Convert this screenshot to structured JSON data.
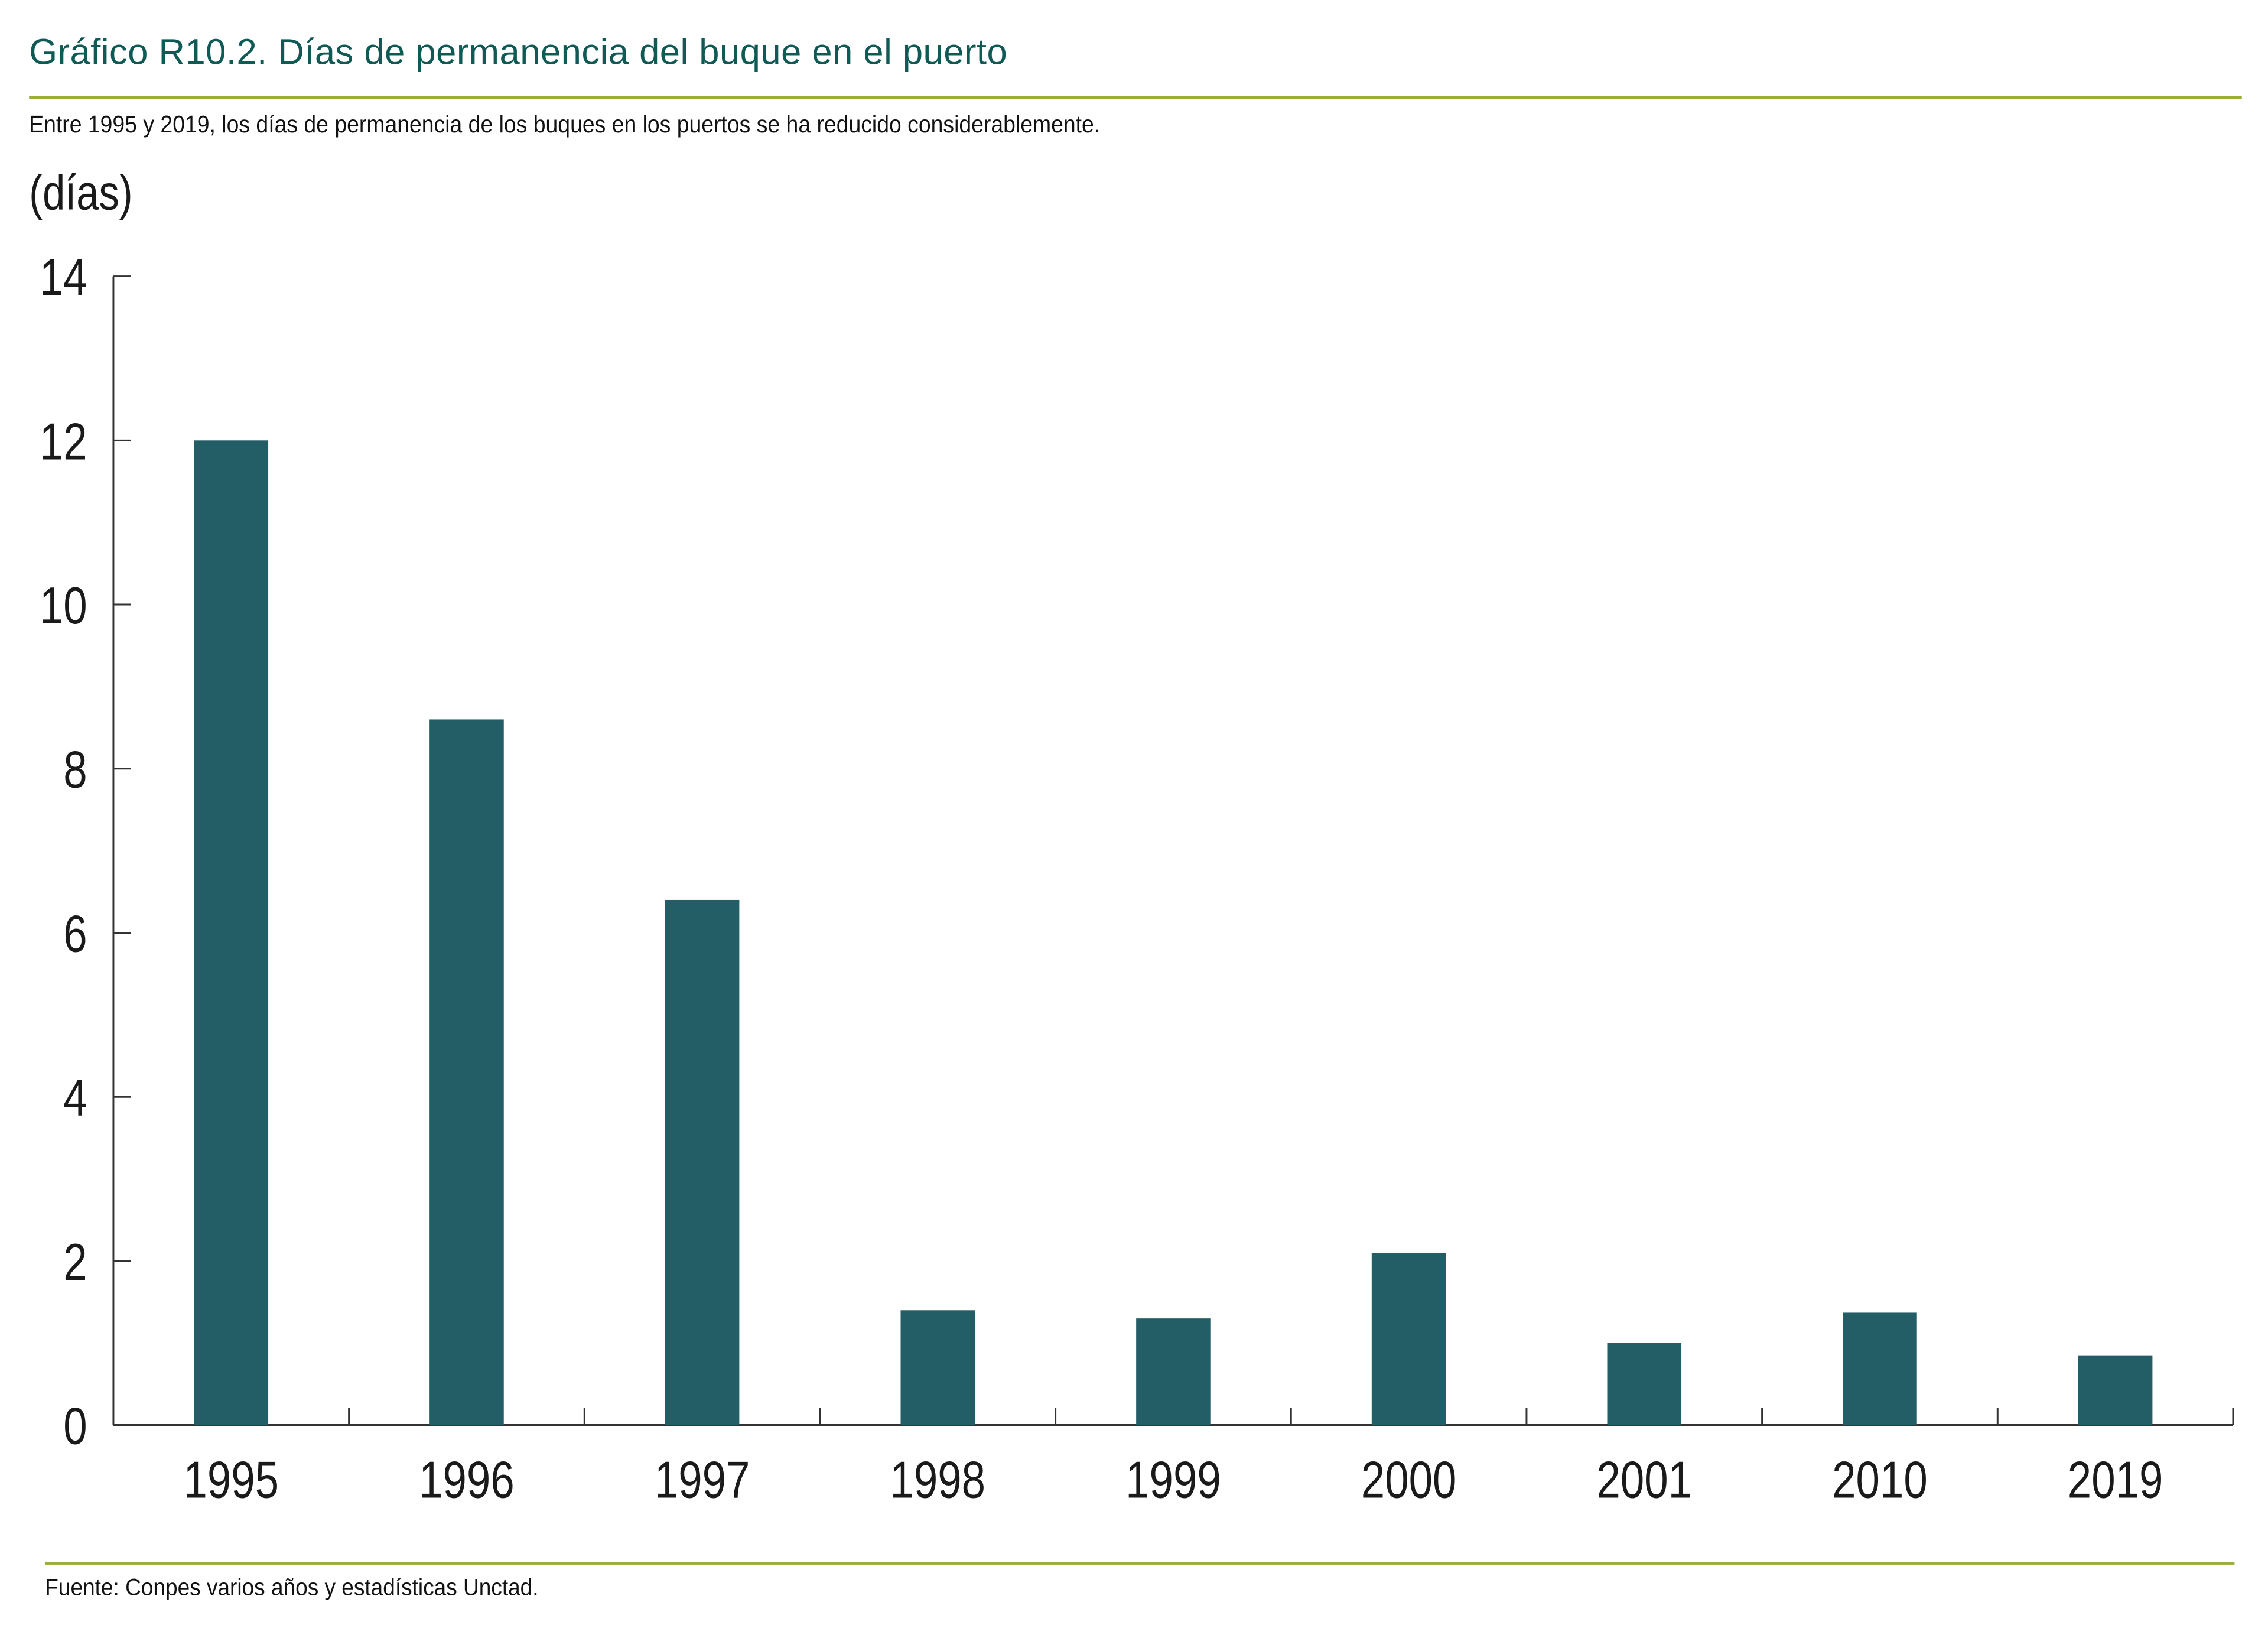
{
  "header": {
    "title": "Gráfico R10.2. Días de permanencia del buque en el puerto",
    "subtitle": "Entre 1995 y 2019, los días de permanencia de los buques en los puertos se ha reducido considerablemente."
  },
  "footer": {
    "source": "Fuente: Conpes varios años y estadísticas Unctad."
  },
  "colors": {
    "title": "#0f5a55",
    "rule": "#9aae3c",
    "bar": "#235e66",
    "axis": "#333333"
  },
  "chart_data": {
    "type": "bar",
    "title": "Gráfico R10.2. Días de permanencia del buque en el puerto",
    "xlabel": "",
    "ylabel": "(días)",
    "categories": [
      "1995",
      "1996",
      "1997",
      "1998",
      "1999",
      "2000",
      "2001",
      "2010",
      "2019"
    ],
    "values": [
      12.0,
      8.6,
      6.4,
      1.4,
      1.3,
      2.1,
      1.0,
      1.37,
      0.85
    ],
    "ylim": [
      0,
      14
    ],
    "yticks": [
      "0",
      "2",
      "4",
      "6",
      "8",
      "10",
      "12",
      "14"
    ],
    "grid": false,
    "legend": "none"
  }
}
